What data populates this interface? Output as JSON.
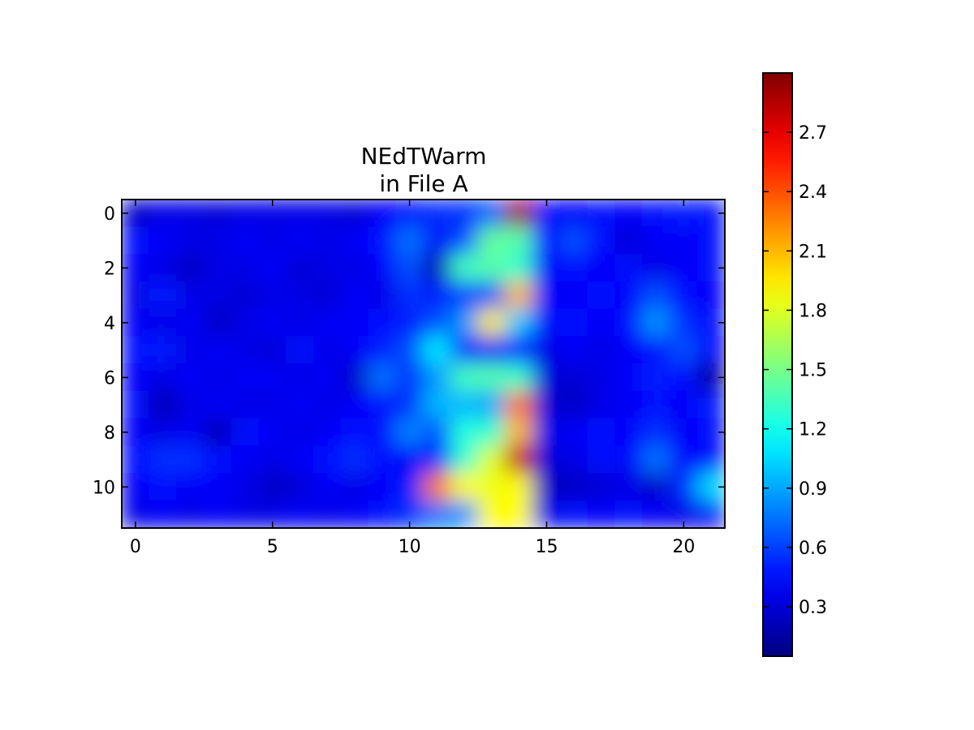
{
  "chart_data": {
    "type": "heatmap",
    "title": [
      "NEdTWarm",
      "in File A"
    ],
    "xlabel": "",
    "ylabel": "",
    "x_ticks": [
      0,
      5,
      10,
      15,
      20
    ],
    "y_ticks": [
      0,
      2,
      4,
      6,
      8,
      10
    ],
    "colorbar_ticks": [
      "0.3",
      "0.6",
      "0.9",
      "1.2",
      "1.5",
      "1.8",
      "2.1",
      "2.4",
      "2.7"
    ],
    "colorbar_range": [
      0.05,
      3.0
    ],
    "colormap": "jet",
    "grid": false,
    "rows": 12,
    "cols": 22,
    "values": [
      [
        0.25,
        0.35,
        0.35,
        0.3,
        0.35,
        0.35,
        0.35,
        0.35,
        0.3,
        0.4,
        0.45,
        0.55,
        0.55,
        0.7,
        2.9,
        0.45,
        0.4,
        0.45,
        0.4,
        0.45,
        0.5,
        0.45
      ],
      [
        0.45,
        0.4,
        0.35,
        0.35,
        0.4,
        0.35,
        0.4,
        0.35,
        0.4,
        0.45,
        0.75,
        0.4,
        0.65,
        1.45,
        1.4,
        0.45,
        0.65,
        0.45,
        0.3,
        0.4,
        0.4,
        0.45
      ],
      [
        0.4,
        0.35,
        0.25,
        0.35,
        0.35,
        0.4,
        0.3,
        0.35,
        0.35,
        0.4,
        0.65,
        0.2,
        1.35,
        1.4,
        1.3,
        0.4,
        0.45,
        0.4,
        0.45,
        0.35,
        0.4,
        0.45
      ],
      [
        0.35,
        0.5,
        0.35,
        0.35,
        0.3,
        0.35,
        0.35,
        0.3,
        0.4,
        0.35,
        0.55,
        0.5,
        0.6,
        0.65,
        2.1,
        0.4,
        0.4,
        0.45,
        0.4,
        0.65,
        0.45,
        0.4
      ],
      [
        0.4,
        0.35,
        0.4,
        0.25,
        0.35,
        0.4,
        0.35,
        0.4,
        0.4,
        0.45,
        0.5,
        0.65,
        0.85,
        1.95,
        1.0,
        0.4,
        0.45,
        0.4,
        0.45,
        0.85,
        0.55,
        0.45
      ],
      [
        0.45,
        0.5,
        0.35,
        0.4,
        0.35,
        0.3,
        0.45,
        0.35,
        0.4,
        0.5,
        0.65,
        1.1,
        0.5,
        0.4,
        0.45,
        0.35,
        0.4,
        0.35,
        0.4,
        0.45,
        0.65,
        0.4
      ],
      [
        0.4,
        0.35,
        0.4,
        0.35,
        0.4,
        0.4,
        0.35,
        0.4,
        0.25,
        0.75,
        0.55,
        0.85,
        1.35,
        1.4,
        1.3,
        0.3,
        0.3,
        0.35,
        0.4,
        0.5,
        0.45,
        0.15
      ],
      [
        0.45,
        0.2,
        0.35,
        0.4,
        0.35,
        0.35,
        0.4,
        0.35,
        0.4,
        0.45,
        0.55,
        0.95,
        0.95,
        0.9,
        2.3,
        0.3,
        0.25,
        0.35,
        0.4,
        0.45,
        0.4,
        0.5
      ],
      [
        0.4,
        0.35,
        0.4,
        0.2,
        0.45,
        0.4,
        0.35,
        0.4,
        0.45,
        0.45,
        0.8,
        0.65,
        1.25,
        1.3,
        2.1,
        0.35,
        0.4,
        0.45,
        0.4,
        0.55,
        0.4,
        0.45
      ],
      [
        0.45,
        0.55,
        0.55,
        0.45,
        0.4,
        0.35,
        0.4,
        0.45,
        0.55,
        0.45,
        0.4,
        0.55,
        1.3,
        1.8,
        2.8,
        0.3,
        0.35,
        0.45,
        0.4,
        0.75,
        0.4,
        0.45
      ],
      [
        0.4,
        0.45,
        0.4,
        0.4,
        0.35,
        0.25,
        0.3,
        0.4,
        0.35,
        0.4,
        0.5,
        2.3,
        1.9,
        1.85,
        1.9,
        0.25,
        0.25,
        0.3,
        0.35,
        0.25,
        0.55,
        1.05
      ],
      [
        0.35,
        0.4,
        0.35,
        0.4,
        0.35,
        0.35,
        0.4,
        0.35,
        0.4,
        0.45,
        0.55,
        0.75,
        0.85,
        1.9,
        1.9,
        0.35,
        0.45,
        0.4,
        0.45,
        0.4,
        0.35,
        0.4
      ]
    ]
  }
}
